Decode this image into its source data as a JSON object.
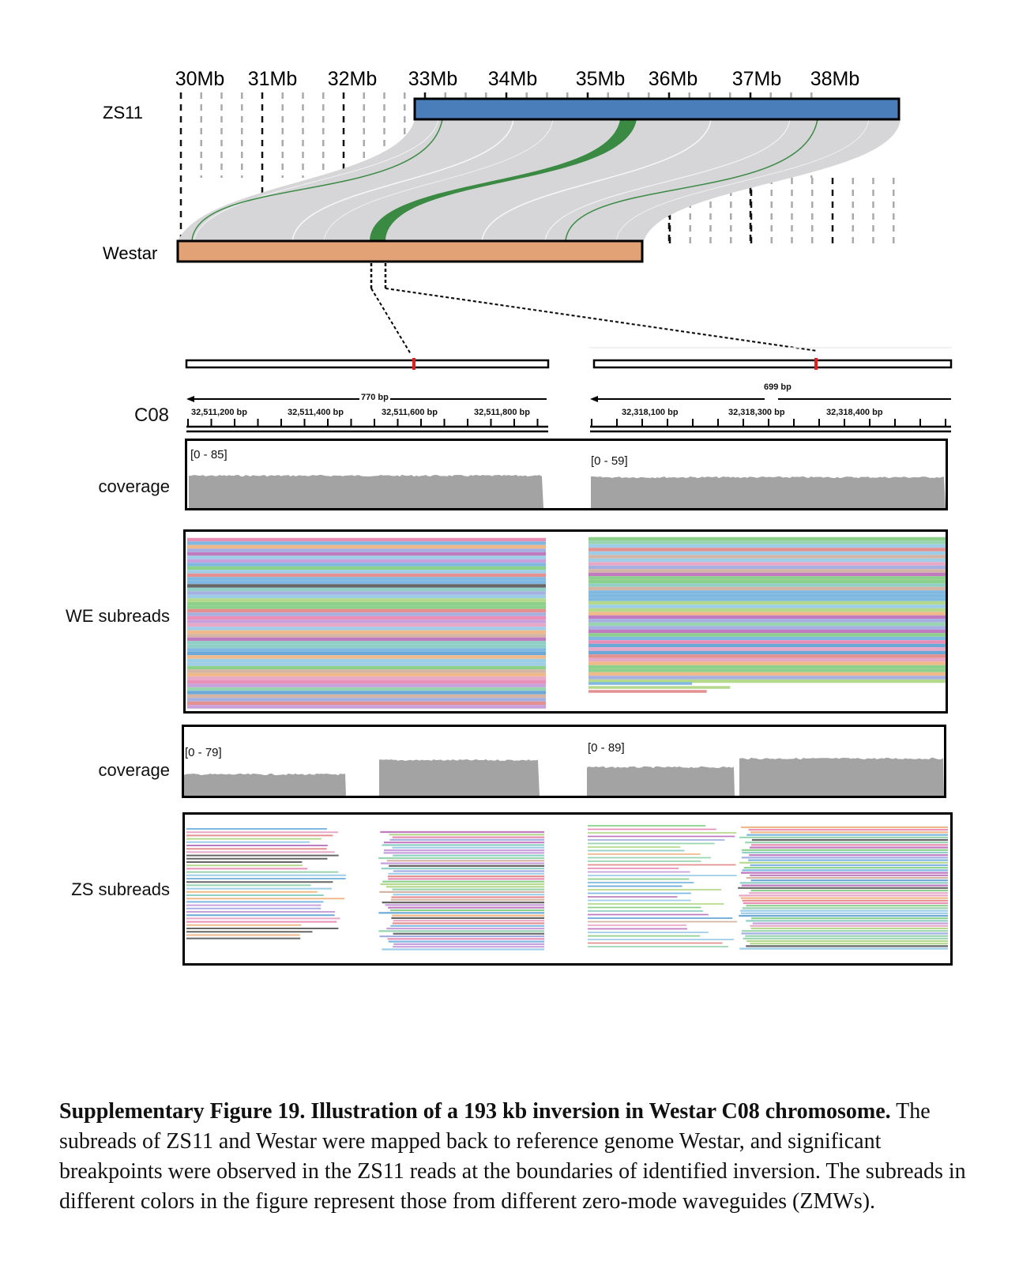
{
  "synteny": {
    "mb_labels": [
      "30Mb",
      "31Mb",
      "32Mb",
      "33Mb",
      "34Mb",
      "35Mb",
      "36Mb",
      "37Mb",
      "38Mb"
    ],
    "genome_top": "ZS11",
    "genome_bottom": "Westar",
    "colors": {
      "zs11": "#4a7ebb",
      "westar": "#e3a275",
      "band": "#d6d6d8",
      "inversion": "#3b8a44"
    }
  },
  "ruler": {
    "chrom": "C08",
    "left": {
      "span": "770 bp",
      "positions": [
        "32,511,200 bp",
        "32,511,400 bp",
        "32,511,600 bp",
        "32,511,800 bp"
      ]
    },
    "right": {
      "span": "699 bp",
      "positions": [
        "32,318,100 bp",
        "32,318,300 bp",
        "32,318,400 bp"
      ]
    }
  },
  "tracks": {
    "coverage1": {
      "label": "coverage",
      "left_range": "[0 - 85]",
      "right_range": "[0 - 59]"
    },
    "we_subreads": {
      "label": "WE subreads"
    },
    "coverage2": {
      "label": "coverage",
      "left_range": "[0 - 79]",
      "right_range": "[0 - 89]"
    },
    "zs_subreads": {
      "label": "ZS subreads"
    }
  },
  "caption": {
    "bold": "Supplementary Figure 19. Illustration of  a 193 kb inversion in Westar C08 chromosome.",
    "text": " The subreads of ZS11 and Westar were mapped back to reference genome Westar, and significant breakpoints were observed in the ZS11 reads at the boundaries of identified inversion. The subreads in different colors in the figure represent those from different zero-mode waveguides (ZMWs)."
  }
}
